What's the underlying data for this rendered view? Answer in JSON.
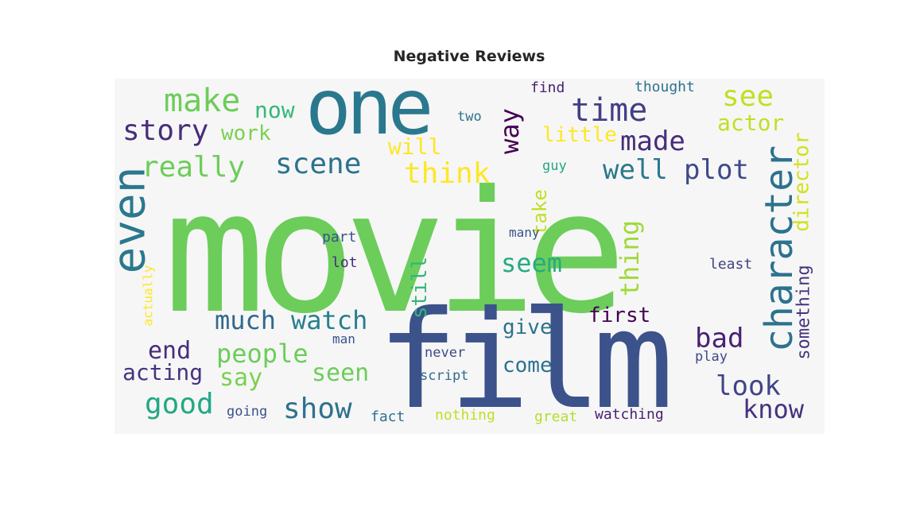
{
  "title": "Negative Reviews",
  "words": [
    {
      "text": "movie",
      "color": "#6ccd5a"
    },
    {
      "text": "film",
      "color": "#3b528b"
    },
    {
      "text": "one",
      "color": "#2a788e"
    },
    {
      "text": "even",
      "color": "#2a788e"
    },
    {
      "text": "character",
      "color": "#2c728e"
    },
    {
      "text": "make",
      "color": "#6ccd5a"
    },
    {
      "text": "time",
      "color": "#433e85"
    },
    {
      "text": "see",
      "color": "#c2df23"
    },
    {
      "text": "story",
      "color": "#472d7b"
    },
    {
      "text": "really",
      "color": "#6ccd5a"
    },
    {
      "text": "scene",
      "color": "#2c728e"
    },
    {
      "text": "think",
      "color": "#fde725"
    },
    {
      "text": "way",
      "color": "#440154"
    },
    {
      "text": "made",
      "color": "#472d7b"
    },
    {
      "text": "well",
      "color": "#2a788e"
    },
    {
      "text": "plot",
      "color": "#3e4989"
    },
    {
      "text": "actor",
      "color": "#c2df23"
    },
    {
      "text": "director",
      "color": "#d2e21b"
    },
    {
      "text": "now",
      "color": "#35b779"
    },
    {
      "text": "work",
      "color": "#7ad151"
    },
    {
      "text": "will",
      "color": "#fde725"
    },
    {
      "text": "little",
      "color": "#fde725"
    },
    {
      "text": "seem",
      "color": "#25ab82"
    },
    {
      "text": "thing",
      "color": "#a0da39"
    },
    {
      "text": "much",
      "color": "#31688e"
    },
    {
      "text": "watch",
      "color": "#277f8e"
    },
    {
      "text": "people",
      "color": "#6ccd5a"
    },
    {
      "text": "bad",
      "color": "#482173"
    },
    {
      "text": "end",
      "color": "#472d7b"
    },
    {
      "text": "acting",
      "color": "#46337e"
    },
    {
      "text": "say",
      "color": "#7ad151"
    },
    {
      "text": "seen",
      "color": "#6ccd5a"
    },
    {
      "text": "good",
      "color": "#22a884"
    },
    {
      "text": "show",
      "color": "#2c728e"
    },
    {
      "text": "look",
      "color": "#414487"
    },
    {
      "text": "know",
      "color": "#46337e"
    },
    {
      "text": "first",
      "color": "#440154"
    },
    {
      "text": "give",
      "color": "#2c728e"
    },
    {
      "text": "come",
      "color": "#2c728e"
    },
    {
      "text": "still",
      "color": "#35b779"
    },
    {
      "text": "take",
      "color": "#c2df23"
    },
    {
      "text": "something",
      "color": "#46337e"
    },
    {
      "text": "find",
      "color": "#482173"
    },
    {
      "text": "thought",
      "color": "#2c728e"
    },
    {
      "text": "two",
      "color": "#2c728e"
    },
    {
      "text": "guy",
      "color": "#22a884"
    },
    {
      "text": "many",
      "color": "#3b528b"
    },
    {
      "text": "part",
      "color": "#3b528b"
    },
    {
      "text": "lot",
      "color": "#472d7b"
    },
    {
      "text": "least",
      "color": "#414487"
    },
    {
      "text": "actually",
      "color": "#fde725"
    },
    {
      "text": "man",
      "color": "#3b528b"
    },
    {
      "text": "never",
      "color": "#3e4989"
    },
    {
      "text": "play",
      "color": "#3e4989"
    },
    {
      "text": "script",
      "color": "#31688e"
    },
    {
      "text": "going",
      "color": "#3b528b"
    },
    {
      "text": "fact",
      "color": "#2c728e"
    },
    {
      "text": "nothing",
      "color": "#c2df23"
    },
    {
      "text": "great",
      "color": "#b5de2b"
    },
    {
      "text": "watching",
      "color": "#482173"
    }
  ]
}
